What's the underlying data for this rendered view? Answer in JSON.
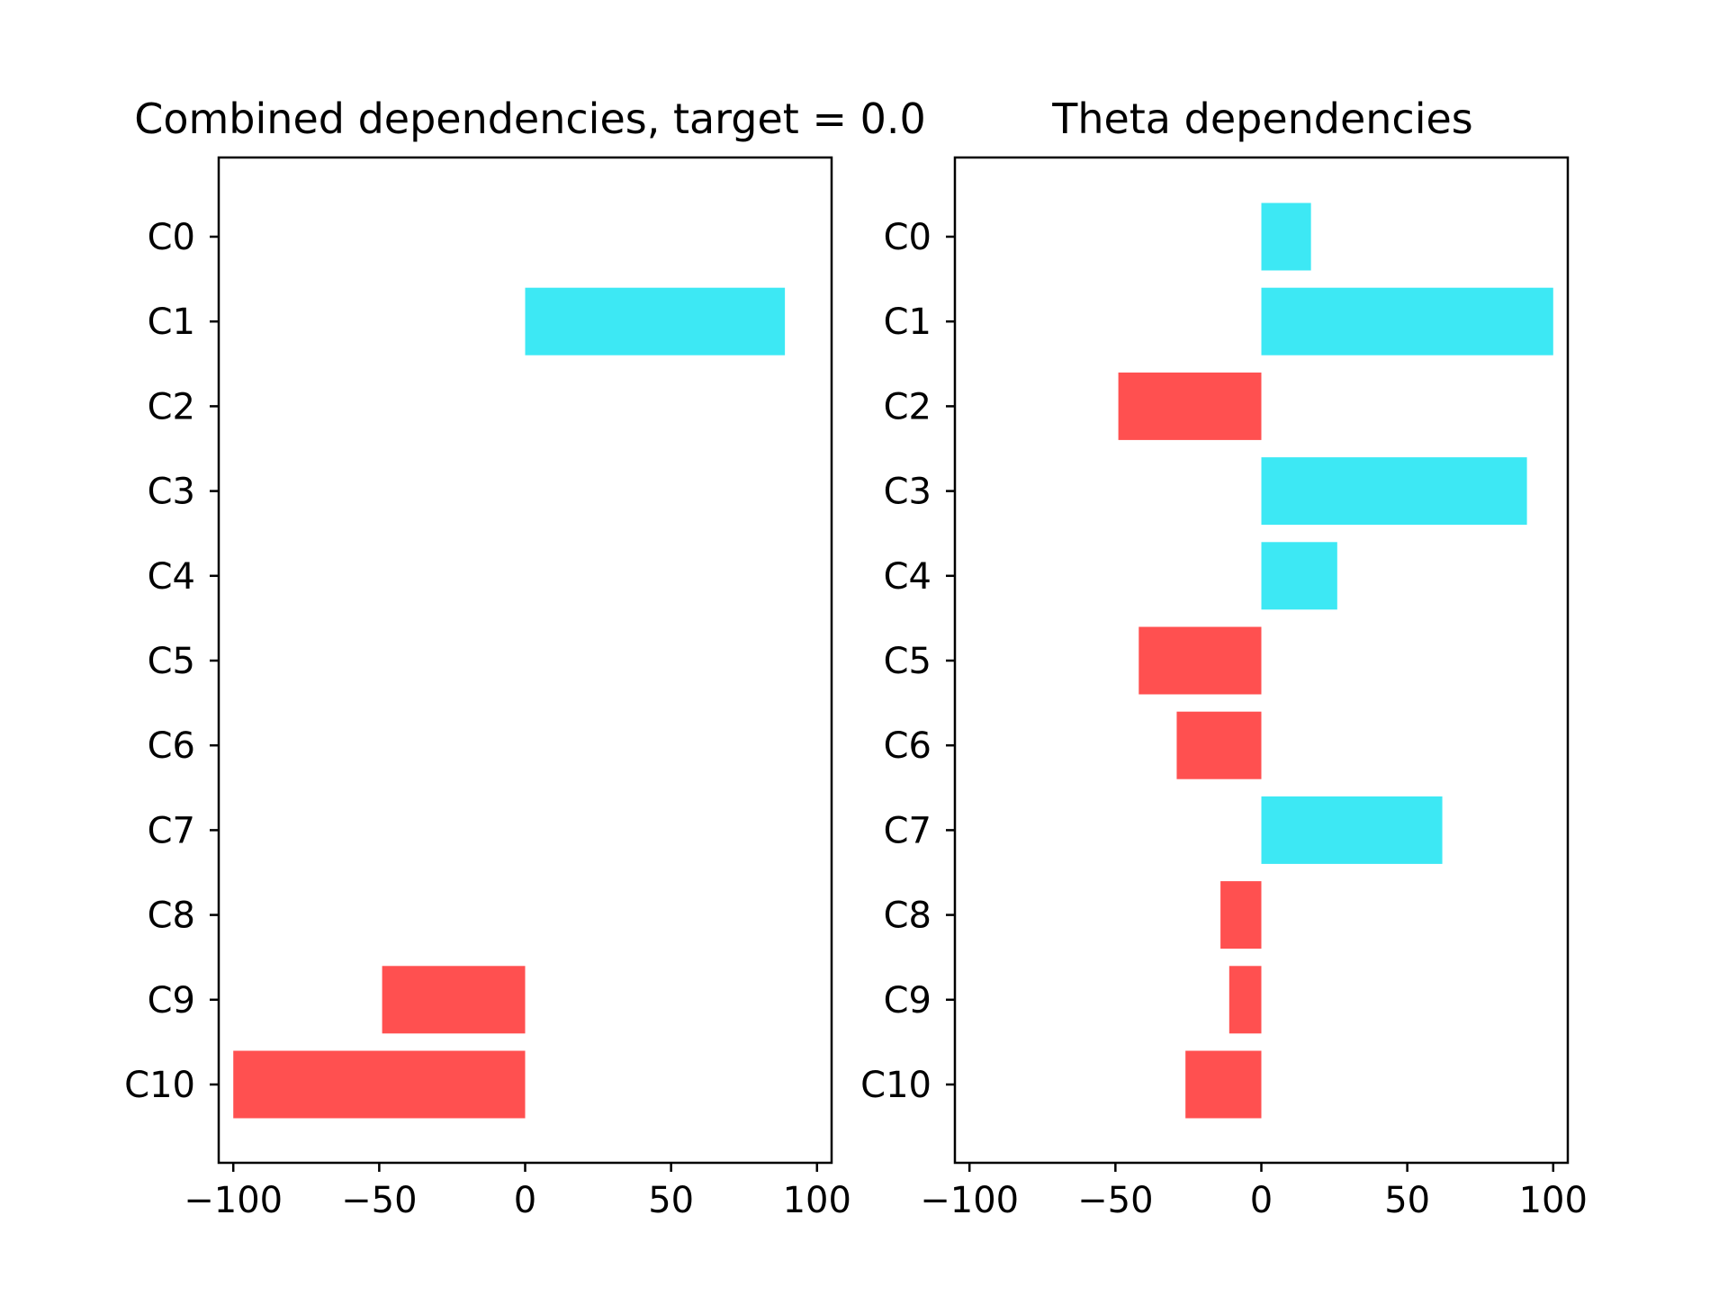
{
  "chart_data": [
    {
      "type": "bar",
      "orientation": "horizontal",
      "title": "Combined dependencies, target = 0.0",
      "xlabel": "",
      "ylabel": "",
      "categories": [
        "C0",
        "C1",
        "C2",
        "C3",
        "C4",
        "C5",
        "C6",
        "C7",
        "C8",
        "C9",
        "C10"
      ],
      "values": [
        0,
        89,
        0,
        0,
        0,
        0,
        0,
        0,
        0,
        -49,
        -100
      ],
      "xlim": [
        -105,
        105
      ],
      "xticks": [
        -100,
        -50,
        0,
        50,
        100
      ],
      "xtick_labels": [
        "−100",
        "−50",
        "0",
        "50",
        "100"
      ],
      "grid": false,
      "positive_color": "#3de8f4",
      "negative_color": "#ff5050"
    },
    {
      "type": "bar",
      "orientation": "horizontal",
      "title": "Theta dependencies",
      "xlabel": "",
      "ylabel": "",
      "categories": [
        "C0",
        "C1",
        "C2",
        "C3",
        "C4",
        "C5",
        "C6",
        "C7",
        "C8",
        "C9",
        "C10"
      ],
      "values": [
        17,
        100,
        -49,
        91,
        26,
        -42,
        -29,
        62,
        -14,
        -11,
        -26
      ],
      "xlim": [
        -105,
        105
      ],
      "xticks": [
        -100,
        -50,
        0,
        50,
        100
      ],
      "xtick_labels": [
        "−100",
        "−50",
        "0",
        "50",
        "100"
      ],
      "grid": false,
      "positive_color": "#3de8f4",
      "negative_color": "#ff5050"
    }
  ]
}
